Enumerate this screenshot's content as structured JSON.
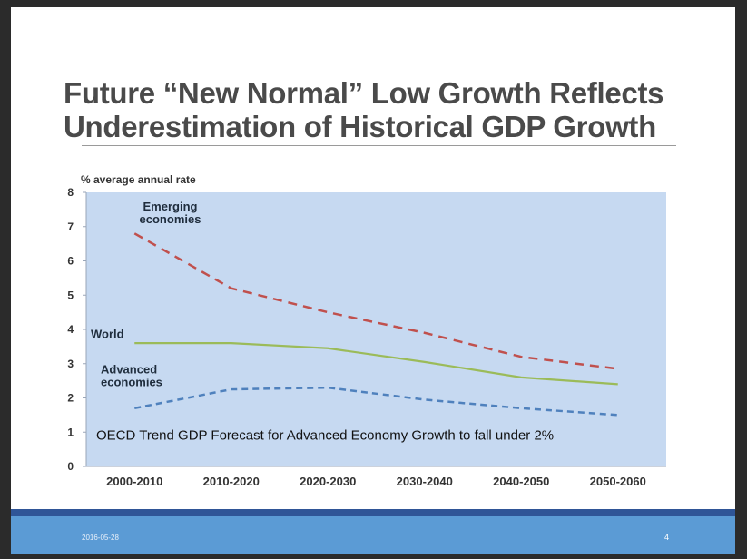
{
  "slide": {
    "title_line1": "Future “New Normal” Low Growth Reflects",
    "title_line2": "Underestimation of Historical GDP Growth",
    "footer_date": "2016-05-28",
    "page_number": "4"
  },
  "chart_data": {
    "type": "line",
    "ylabel": "% average annual rate",
    "categories": [
      "2000-2010",
      "2010-2020",
      "2020-2030",
      "2030-2040",
      "2040-2050",
      "2050-2060"
    ],
    "ylim": [
      0,
      8
    ],
    "yticks": [
      "0",
      "1",
      "2",
      "3",
      "4",
      "5",
      "6",
      "7",
      "8"
    ],
    "series": [
      {
        "name": "Emerging economies",
        "label_lines": [
          "Emerging",
          "economies"
        ],
        "values": [
          6.8,
          5.2,
          4.5,
          3.9,
          3.2,
          2.85
        ],
        "color": "#c0504d",
        "style": "dashed"
      },
      {
        "name": "World",
        "label_lines": [
          "World"
        ],
        "values": [
          3.6,
          3.6,
          3.45,
          3.05,
          2.6,
          2.4
        ],
        "color": "#9bbb59",
        "style": "solid"
      },
      {
        "name": "Advanced economies",
        "label_lines": [
          "Advanced",
          "economies"
        ],
        "values": [
          1.7,
          2.25,
          2.3,
          1.95,
          1.7,
          1.5
        ],
        "color": "#4f81bd",
        "style": "dashed"
      }
    ],
    "annotation": "OECD Trend GDP Forecast for Advanced Economy Growth to fall under  2%",
    "plot_background": "#c6d9f1"
  }
}
